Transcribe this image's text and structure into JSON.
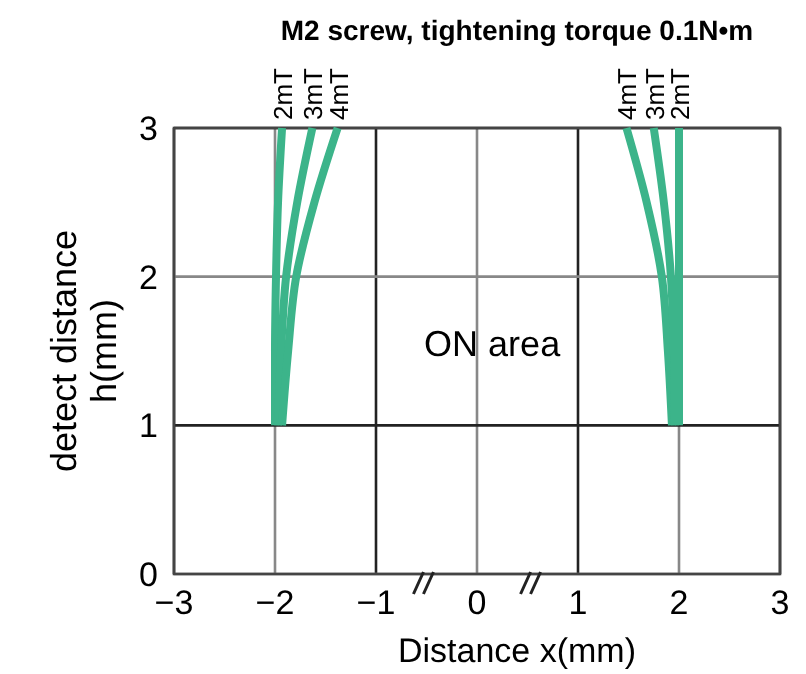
{
  "chart_data": {
    "type": "line",
    "title": "M2 screw, tightening torque 0.1N•m",
    "xlabel": "Distance x(mm)",
    "ylabel": "detect distance\nh(mm)",
    "annotations": [
      "ON area"
    ],
    "xlim": [
      -3,
      3
    ],
    "xticks": [
      {
        "value": -3,
        "label": "−3"
      },
      {
        "value": -2,
        "label": "−2"
      },
      {
        "value": -1,
        "label": "−1"
      },
      0,
      1,
      2,
      3
    ],
    "ylim": [
      0,
      3
    ],
    "yticks": [
      0,
      1,
      2,
      3
    ],
    "grid": true,
    "legend": false,
    "marker": "none",
    "line_style": "solid",
    "series": [
      {
        "name": "2mT",
        "color": "#3cb48a",
        "x": [
          -2.0,
          -2.0,
          -1.99,
          -1.97,
          -1.93
        ],
        "values": [
          1,
          1.5,
          2,
          2.5,
          3
        ]
      },
      {
        "name": "3mT",
        "color": "#3cb48a",
        "x": [
          -1.97,
          -1.94,
          -1.89,
          -1.78,
          -1.63
        ],
        "values": [
          1,
          1.5,
          2,
          2.5,
          3
        ]
      },
      {
        "name": "4mT",
        "color": "#3cb48a",
        "x": [
          -1.93,
          -1.87,
          -1.79,
          -1.61,
          -1.38
        ],
        "values": [
          1,
          1.5,
          2,
          2.5,
          3
        ]
      },
      {
        "name": "4mT",
        "color": "#3cb48a",
        "x": [
          1.93,
          1.89,
          1.83,
          1.68,
          1.48
        ],
        "values": [
          1,
          1.5,
          2,
          2.5,
          3
        ]
      },
      {
        "name": "3mT",
        "color": "#3cb48a",
        "x": [
          1.96,
          1.95,
          1.92,
          1.85,
          1.75
        ],
        "values": [
          1,
          1.5,
          2,
          2.5,
          3
        ]
      },
      {
        "name": "2mT",
        "color": "#3cb48a",
        "x": [
          2.0,
          2.0,
          2.0,
          2.0,
          2.0
        ],
        "values": [
          1,
          1.5,
          2,
          2.5,
          3
        ]
      }
    ]
  }
}
